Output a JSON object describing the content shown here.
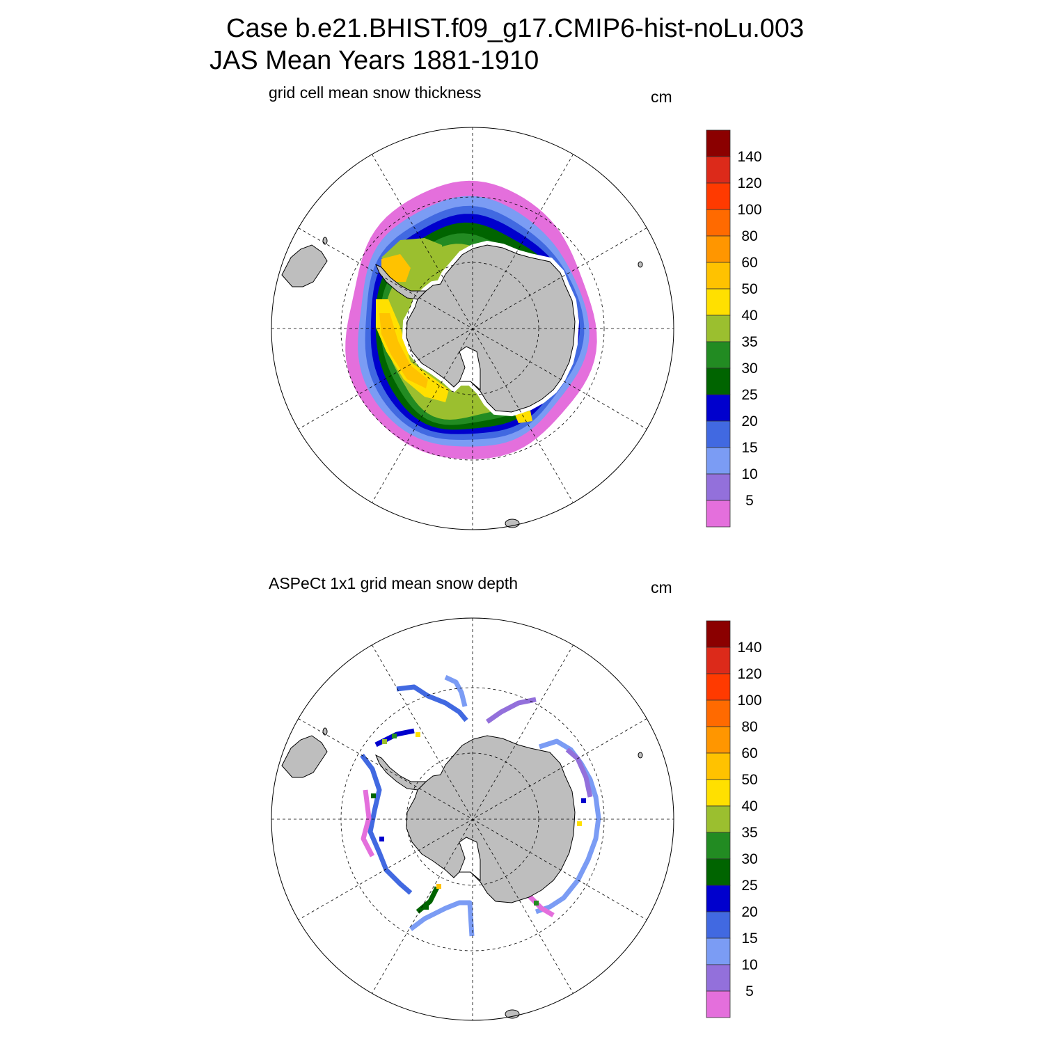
{
  "title": {
    "line1": "Case b.e21.BHIST.f09_g17.CMIP6-hist-noLu.003",
    "line2": "JAS Mean   Years 1881-1910"
  },
  "colorbar": {
    "labels": [
      "140",
      "120",
      "100",
      "80",
      "60",
      "50",
      "40",
      "35",
      "30",
      "25",
      "20",
      "15",
      "10",
      "5"
    ],
    "colors": [
      "#8b0000",
      "#dc2a1a",
      "#ff3a00",
      "#ff6a00",
      "#ff9600",
      "#ffc200",
      "#ffe000",
      "#9bbf2f",
      "#228b22",
      "#006400",
      "#0000cd",
      "#4169e1",
      "#7b9cf4",
      "#9370db",
      "#e46fdc"
    ]
  },
  "land_color": "#bebebe",
  "panels": [
    {
      "id": "model",
      "subtitle": "grid cell mean snow thickness",
      "units": "cm",
      "field": "continuous"
    },
    {
      "id": "obs",
      "subtitle": "ASPeCt 1x1 grid mean snow depth",
      "units": "cm",
      "field": "ship-tracks"
    }
  ]
}
